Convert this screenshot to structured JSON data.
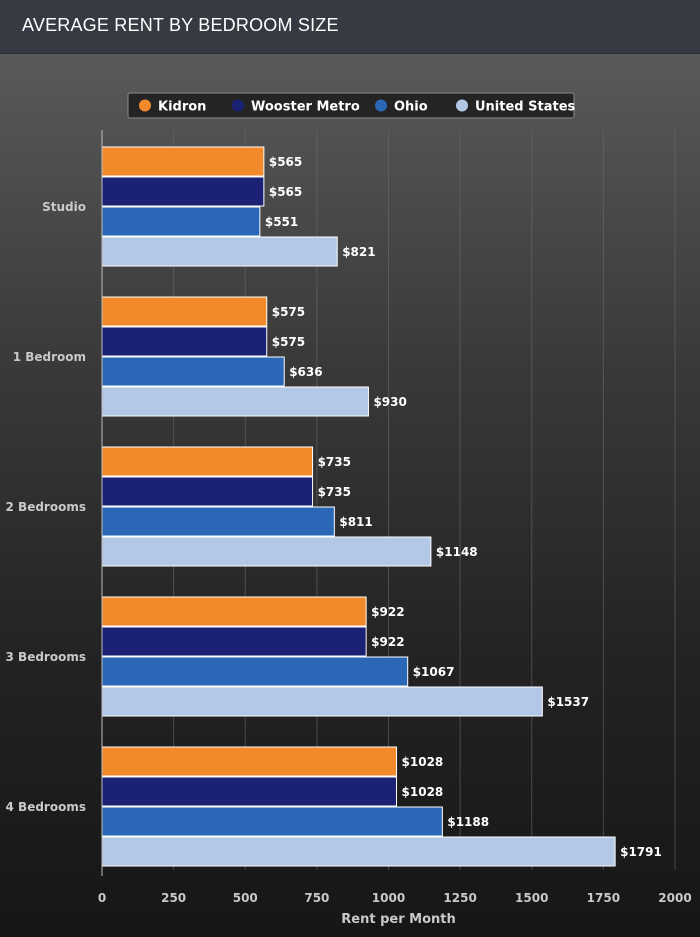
{
  "chart_data": {
    "type": "bar",
    "orientation": "horizontal",
    "title": "AVERAGE RENT BY BEDROOM SIZE",
    "xlabel": "Rent per Month",
    "ylabel": "",
    "xlim": [
      0,
      2000
    ],
    "xticks": [
      0,
      250,
      500,
      750,
      1000,
      1250,
      1500,
      1750,
      2000
    ],
    "grid": true,
    "legend_position": "top-center",
    "value_prefix": "$",
    "categories": [
      "Studio",
      "1 Bedroom",
      "2 Bedrooms",
      "3 Bedrooms",
      "4 Bedrooms"
    ],
    "series": [
      {
        "name": "Kidron",
        "color": "#f28a2b",
        "values": [
          565,
          575,
          735,
          922,
          1028
        ]
      },
      {
        "name": "Wooster Metro",
        "color": "#1b2175",
        "values": [
          565,
          575,
          735,
          922,
          1028
        ]
      },
      {
        "name": "Ohio",
        "color": "#2a67b6",
        "values": [
          551,
          636,
          811,
          1067,
          1188
        ]
      },
      {
        "name": "United States",
        "color": "#b2c8e6",
        "values": [
          821,
          930,
          1148,
          1537,
          1791
        ]
      }
    ]
  }
}
